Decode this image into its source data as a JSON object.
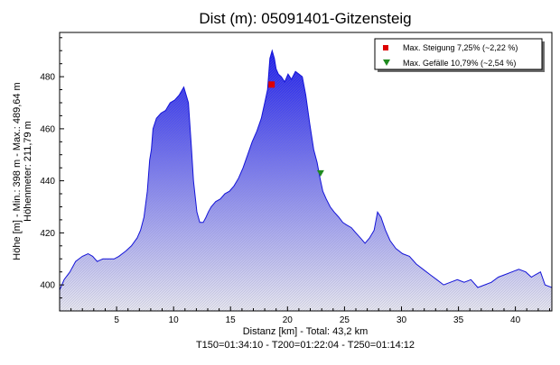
{
  "colors": {
    "background": "#ffffff",
    "plot_background": "#ffffff",
    "profile_line": "#1414d8",
    "fill_top": "#1e1eea",
    "fill_bottom": "#e6e6ee",
    "max_climb_marker": "#dd0000",
    "max_descent_marker": "#1f8a1f"
  },
  "chart_data": {
    "type": "area",
    "title": "Dist (m): 05091401-Gitzensteig",
    "xlabel_lines": [
      "Distanz [km] - Total: 43,2 km",
      "T150=01:34:10 - T200=01:22:04 - T250=01:14:12"
    ],
    "ylabel_lines": [
      "Höhe [m] - Min.: 398 m - Max.: 489,64 m",
      "Höhenmeter: 211,79 m"
    ],
    "xlim": [
      0,
      43.2
    ],
    "ylim": [
      390,
      497
    ],
    "x_ticks": [
      5,
      10,
      15,
      20,
      25,
      30,
      35,
      40
    ],
    "y_ticks": [
      400,
      420,
      440,
      460,
      480
    ],
    "grid": false,
    "legend_position": "top-right",
    "legend": [
      {
        "marker": "square",
        "color": "#dd0000",
        "label": "Max. Steigung 7,25% (~2,22 %)"
      },
      {
        "marker": "triangle-down",
        "color": "#1f8a1f",
        "label": "Max. Gefälle 10,79% (~2,54 %)"
      }
    ],
    "markers": [
      {
        "name": "max-climb",
        "x": 18.6,
        "y": 477
      },
      {
        "name": "max-descent",
        "x": 22.9,
        "y": 443
      }
    ],
    "series": [
      {
        "x": [
          0,
          0.4,
          0.9,
          1.4,
          2.0,
          2.5,
          2.9,
          3.3,
          3.8,
          4.3,
          4.8,
          5.2,
          5.8,
          6.3,
          6.8,
          7.1,
          7.4,
          7.7,
          7.9,
          8.05,
          8.2,
          8.5,
          8.9,
          9.3,
          9.7,
          10.1,
          10.5,
          10.9,
          11.3,
          11.55,
          11.75,
          12.05,
          12.3,
          12.6,
          12.85,
          13.05,
          13.3,
          13.7,
          14.1,
          14.5,
          14.9,
          15.3,
          15.7,
          16.1,
          16.5,
          16.9,
          17.3,
          17.7,
          18.0,
          18.25,
          18.45,
          18.65,
          18.85,
          19.0,
          19.2,
          19.45,
          19.75,
          20.05,
          20.35,
          20.7,
          21.0,
          21.3,
          21.6,
          21.95,
          22.3,
          22.6,
          22.85,
          23.1,
          23.4,
          23.75,
          24.1,
          24.5,
          24.85,
          25.2,
          25.6,
          26.0,
          26.4,
          26.8,
          27.2,
          27.6,
          27.9,
          28.2,
          28.6,
          29.0,
          29.5,
          30.1,
          30.7,
          31.3,
          31.9,
          32.5,
          33.1,
          33.7,
          34.3,
          34.9,
          35.5,
          36.1,
          36.7,
          37.3,
          37.9,
          38.5,
          39.1,
          39.7,
          40.3,
          40.9,
          41.4,
          41.8,
          42.2,
          42.6,
          43.2
        ],
        "y": [
          398,
          402,
          405,
          409,
          411,
          412,
          411,
          409,
          410,
          410,
          410,
          411,
          413,
          415,
          418,
          421,
          426,
          436,
          448,
          452,
          460,
          464,
          466,
          467,
          470,
          471,
          473,
          476,
          470,
          454,
          440,
          428,
          424,
          424,
          426,
          428,
          430,
          432,
          433,
          435,
          436,
          438,
          441,
          445,
          450,
          455,
          459,
          464,
          470,
          475,
          487,
          490,
          487,
          483,
          481,
          480,
          478,
          481,
          479,
          482,
          481,
          480,
          473,
          462,
          452,
          447,
          441,
          436,
          433,
          430,
          428,
          426,
          424,
          423,
          422,
          420,
          418,
          416,
          418,
          421,
          428,
          426,
          421,
          417,
          414,
          412,
          411,
          408,
          406,
          404,
          402,
          400,
          401,
          402,
          401,
          402,
          399,
          400,
          401,
          403,
          404,
          405,
          406,
          405,
          403,
          404,
          405,
          400,
          399
        ]
      }
    ]
  }
}
